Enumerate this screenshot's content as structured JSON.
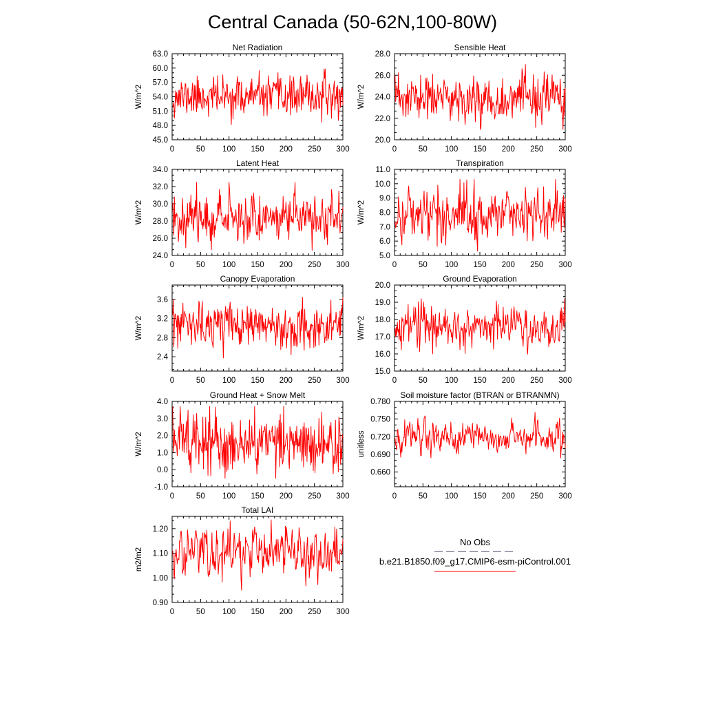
{
  "figure": {
    "title": "Central Canada (50-62N,100-80W)",
    "series_color": "#ff0000",
    "obs_color": "#44446a"
  },
  "legend": {
    "obs_label": "No Obs",
    "case_label": "b.e21.B1850.f09_g17.CMIP6-esm-piControl.001"
  },
  "chart_data": [
    {
      "type": "line",
      "title": "Net Radiation",
      "ylabel": "W/m^2",
      "xlim": [
        0,
        300
      ],
      "ylim": [
        45.0,
        63.0
      ],
      "xticks": [
        0,
        50,
        100,
        150,
        200,
        250,
        300
      ],
      "xtick_labels": [
        "0",
        "50",
        "100",
        "150",
        "200",
        "250",
        "300"
      ],
      "yticks": [
        45.0,
        48.0,
        51.0,
        54.0,
        57.0,
        60.0,
        63.0
      ],
      "ytick_labels": [
        "45.0",
        "48.0",
        "51.0",
        "54.0",
        "57.0",
        "60.0",
        "63.0"
      ],
      "series": [
        {
          "color": "#ff0000",
          "x_start": 1,
          "x_end": 300,
          "mean": 54.0,
          "sd": 2.0,
          "min": 47.0,
          "max": 60.3,
          "seed": 11,
          "ar": 0.05
        }
      ]
    },
    {
      "type": "line",
      "title": "Sensible Heat",
      "ylabel": "W/m^2",
      "xlim": [
        0,
        300
      ],
      "ylim": [
        20.0,
        28.0
      ],
      "xticks": [
        0,
        50,
        100,
        150,
        200,
        250,
        300
      ],
      "xtick_labels": [
        "0",
        "50",
        "100",
        "150",
        "200",
        "250",
        "300"
      ],
      "yticks": [
        20.0,
        22.0,
        24.0,
        26.0,
        28.0
      ],
      "ytick_labels": [
        "20.0",
        "22.0",
        "24.0",
        "26.0",
        "28.0"
      ],
      "series": [
        {
          "color": "#ff0000",
          "x_start": 1,
          "x_end": 300,
          "mean": 23.8,
          "sd": 1.1,
          "min": 20.4,
          "max": 27.0,
          "seed": 23,
          "ar": 0.05
        }
      ]
    },
    {
      "type": "line",
      "title": "Latent Heat",
      "ylabel": "W/m^2",
      "xlim": [
        0,
        300
      ],
      "ylim": [
        24.0,
        34.0
      ],
      "xticks": [
        0,
        50,
        100,
        150,
        200,
        250,
        300
      ],
      "xtick_labels": [
        "0",
        "50",
        "100",
        "150",
        "200",
        "250",
        "300"
      ],
      "yticks": [
        24.0,
        26.0,
        28.0,
        30.0,
        32.0,
        34.0
      ],
      "ytick_labels": [
        "24.0",
        "26.0",
        "28.0",
        "30.0",
        "32.0",
        "34.0"
      ],
      "series": [
        {
          "color": "#ff0000",
          "x_start": 1,
          "x_end": 300,
          "mean": 28.5,
          "sd": 1.4,
          "min": 24.6,
          "max": 32.5,
          "seed": 37,
          "ar": 0.1
        }
      ]
    },
    {
      "type": "line",
      "title": "Transpiration",
      "ylabel": "W/m^2",
      "xlim": [
        0,
        300
      ],
      "ylim": [
        5.0,
        11.0
      ],
      "xticks": [
        0,
        50,
        100,
        150,
        200,
        250,
        300
      ],
      "xtick_labels": [
        "0",
        "50",
        "100",
        "150",
        "200",
        "250",
        "300"
      ],
      "yticks": [
        5.0,
        6.0,
        7.0,
        8.0,
        9.0,
        10.0,
        11.0
      ],
      "ytick_labels": [
        "5.0",
        "6.0",
        "7.0",
        "8.0",
        "9.0",
        "10.0",
        "11.0"
      ],
      "series": [
        {
          "color": "#ff0000",
          "x_start": 1,
          "x_end": 300,
          "mean": 7.9,
          "sd": 0.95,
          "min": 5.3,
          "max": 10.3,
          "seed": 41,
          "ar": 0.25
        }
      ]
    },
    {
      "type": "line",
      "title": "Canopy Evaporation",
      "ylabel": "W/m^2",
      "xlim": [
        0,
        300
      ],
      "ylim": [
        2.1,
        3.9
      ],
      "xticks": [
        0,
        50,
        100,
        150,
        200,
        250,
        300
      ],
      "xtick_labels": [
        "0",
        "50",
        "100",
        "150",
        "200",
        "250",
        "300"
      ],
      "yticks": [
        2.4,
        2.8,
        3.2,
        3.6
      ],
      "ytick_labels": [
        "2.4",
        "2.8",
        "3.2",
        "3.6"
      ],
      "series": [
        {
          "color": "#ff0000",
          "x_start": 1,
          "x_end": 300,
          "mean": 3.05,
          "sd": 0.23,
          "min": 2.32,
          "max": 3.72,
          "seed": 53,
          "ar": 0.1
        }
      ]
    },
    {
      "type": "line",
      "title": "Ground Evaporation",
      "ylabel": "W/m^2",
      "xlim": [
        0,
        300
      ],
      "ylim": [
        15.0,
        20.0
      ],
      "xticks": [
        0,
        50,
        100,
        150,
        200,
        250,
        300
      ],
      "xtick_labels": [
        "0",
        "50",
        "100",
        "150",
        "200",
        "250",
        "300"
      ],
      "yticks": [
        15.0,
        16.0,
        17.0,
        18.0,
        19.0,
        20.0
      ],
      "ytick_labels": [
        "15.0",
        "16.0",
        "17.0",
        "18.0",
        "19.0",
        "20.0"
      ],
      "series": [
        {
          "color": "#ff0000",
          "x_start": 1,
          "x_end": 300,
          "mean": 17.6,
          "sd": 0.6,
          "min": 15.6,
          "max": 19.2,
          "seed": 67,
          "ar": 0.15
        }
      ]
    },
    {
      "type": "line",
      "title": "Ground Heat + Snow Melt",
      "ylabel": "W/m^2",
      "xlim": [
        0,
        300
      ],
      "ylim": [
        -1.0,
        4.0
      ],
      "xticks": [
        0,
        50,
        100,
        150,
        200,
        250,
        300
      ],
      "xtick_labels": [
        "0",
        "50",
        "100",
        "150",
        "200",
        "250",
        "300"
      ],
      "yticks": [
        -1.0,
        0.0,
        1.0,
        2.0,
        3.0,
        4.0
      ],
      "ytick_labels": [
        "-1.0",
        "0.0",
        "1.0",
        "2.0",
        "3.0",
        "4.0"
      ],
      "series": [
        {
          "color": "#ff0000",
          "x_start": 1,
          "x_end": 300,
          "mean": 1.55,
          "sd": 0.85,
          "min": -0.5,
          "max": 3.7,
          "seed": 79,
          "ar": 0.0
        }
      ]
    },
    {
      "type": "line",
      "title": "Soil moisture factor (BTRAN or BTRANMN)",
      "ylabel": "unitless",
      "xlim": [
        0,
        300
      ],
      "ylim": [
        0.635,
        0.78
      ],
      "xticks": [
        0,
        50,
        100,
        150,
        200,
        250,
        300
      ],
      "xtick_labels": [
        "0",
        "50",
        "100",
        "150",
        "200",
        "250",
        "300"
      ],
      "yticks": [
        0.66,
        0.69,
        0.72,
        0.75,
        0.78
      ],
      "ytick_labels": [
        "0.660",
        "0.690",
        "0.720",
        "0.750",
        "0.780"
      ],
      "series": [
        {
          "color": "#ff0000",
          "x_start": 1,
          "x_end": 300,
          "mean": 0.718,
          "sd": 0.015,
          "min": 0.655,
          "max": 0.777,
          "seed": 83,
          "ar": 0.45
        }
      ]
    },
    {
      "type": "line",
      "title": "Total LAI",
      "ylabel": "m2/m2",
      "xlim": [
        0,
        300
      ],
      "ylim": [
        0.9,
        1.25
      ],
      "xticks": [
        0,
        50,
        100,
        150,
        200,
        250,
        300
      ],
      "xtick_labels": [
        "0",
        "50",
        "100",
        "150",
        "200",
        "250",
        "300"
      ],
      "yticks": [
        0.9,
        1.0,
        1.1,
        1.2
      ],
      "ytick_labels": [
        "0.90",
        "1.00",
        "1.10",
        "1.20"
      ],
      "series": [
        {
          "color": "#ff0000",
          "x_start": 1,
          "x_end": 300,
          "mean": 1.1,
          "sd": 0.055,
          "min": 0.95,
          "max": 1.24,
          "seed": 97,
          "ar": 0.35
        }
      ]
    }
  ]
}
